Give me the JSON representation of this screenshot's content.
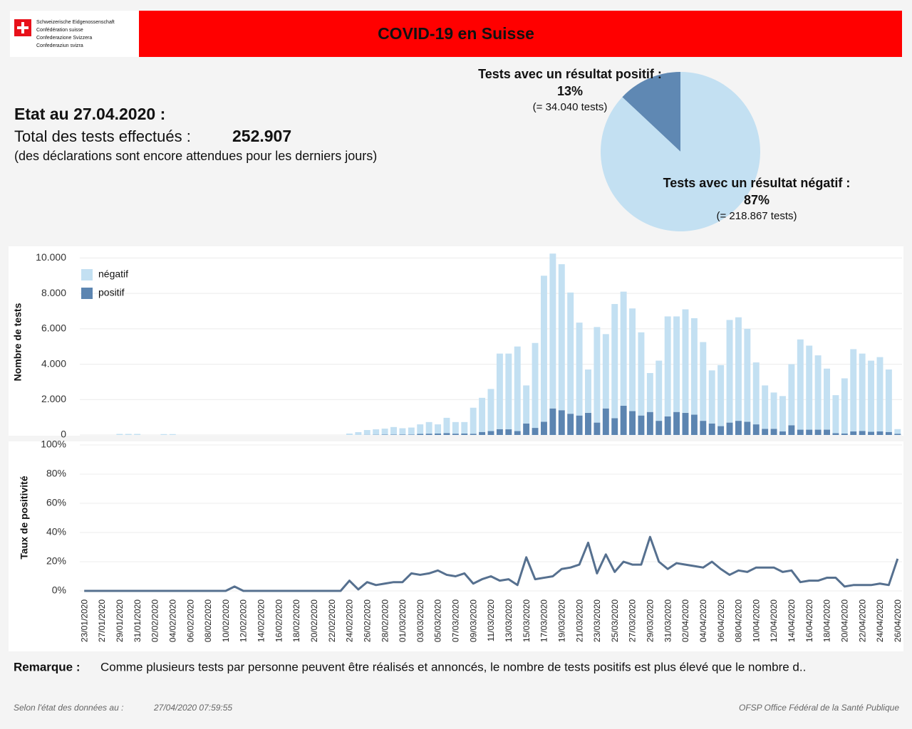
{
  "header": {
    "logo_lines": [
      "Schweizerische Eidgenossenschaft",
      "Confédération suisse",
      "Confederazione Svizzera",
      "Confederaziun svizra"
    ],
    "title": "COVID-19 en Suisse"
  },
  "summary": {
    "date_label": "Etat au 27.04.2020 :",
    "total_label": "Total des tests effectués :",
    "total_value": "252.907",
    "note": "(des déclarations sont encore attendues pour les derniers jours)"
  },
  "chart_data": [
    {
      "type": "pie",
      "labels": [
        "Tests avec un résultat positif :",
        "Tests avec un résultat négatif :"
      ],
      "values": [
        13,
        87
      ],
      "value_labels": [
        "13%",
        "87%"
      ],
      "details": [
        "(= 34.040 tests)",
        "(= 218.867 tests)"
      ],
      "colors": [
        "#5f88b3",
        "#c3e0f2"
      ]
    },
    {
      "type": "bar",
      "stacked": true,
      "y_label": "Nombre de tests",
      "ylim": [
        0,
        10500
      ],
      "yticks": [
        0,
        {
          "value": 2000,
          "label": "2.000"
        },
        {
          "value": 4000,
          "label": "4.000"
        },
        {
          "value": 6000,
          "label": "6.000"
        },
        {
          "value": 8000,
          "label": "8.000"
        },
        {
          "value": 10000,
          "label": "10.000"
        }
      ],
      "grid": true,
      "legend": "top-left",
      "series": [
        {
          "name": "négatif",
          "color": "#c3e0f2",
          "values": [
            0,
            0,
            0,
            0,
            60,
            60,
            60,
            0,
            0,
            50,
            50,
            0,
            0,
            0,
            0,
            0,
            0,
            0,
            0,
            0,
            0,
            0,
            0,
            0,
            0,
            0,
            0,
            0,
            0,
            0,
            80,
            160,
            270,
            305,
            340,
            425,
            350,
            395,
            540,
            655,
            520,
            860,
            655,
            650,
            1470,
            1930,
            2380,
            4270,
            4280,
            4780,
            2150,
            4800,
            8250,
            8750,
            8250,
            6850,
            5250,
            2450,
            5400,
            4200,
            6450,
            6450,
            5800,
            4700,
            2200,
            3400,
            5650,
            5400,
            5850,
            5450,
            4450,
            3000,
            3450,
            5800,
            5850,
            5250,
            3500,
            2450,
            2050,
            2000,
            3450,
            5100,
            4750,
            4200,
            3450,
            2150,
            3120,
            4650,
            4370,
            4020,
            4200,
            3530,
            260
          ]
        },
        {
          "name": "positif",
          "color": "#5c85b1",
          "values": [
            0,
            0,
            0,
            0,
            0,
            0,
            0,
            0,
            0,
            0,
            0,
            0,
            0,
            0,
            0,
            0,
            0,
            0,
            0,
            0,
            0,
            0,
            0,
            0,
            0,
            0,
            0,
            0,
            0,
            0,
            0,
            0,
            10,
            15,
            20,
            25,
            30,
            25,
            60,
            75,
            80,
            110,
            75,
            80,
            70,
            170,
            220,
            330,
            320,
            220,
            650,
            400,
            750,
            1500,
            1400,
            1200,
            1100,
            1250,
            700,
            1500,
            950,
            1650,
            1350,
            1100,
            1300,
            800,
            1050,
            1300,
            1250,
            1150,
            800,
            650,
            500,
            700,
            800,
            750,
            600,
            350,
            350,
            200,
            550,
            300,
            300,
            300,
            300,
            100,
            80,
            200,
            230,
            180,
            200,
            170,
            70
          ]
        }
      ]
    },
    {
      "type": "line",
      "y_label": "Taux de positivité",
      "ylim": [
        0,
        100
      ],
      "yticks": [
        {
          "value": 0,
          "label": "0%"
        },
        {
          "value": 20,
          "label": "20%"
        },
        {
          "value": 40,
          "label": "40%"
        },
        {
          "value": 60,
          "label": "60%"
        },
        {
          "value": 80,
          "label": "80%"
        },
        {
          "value": 100,
          "label": "100%"
        }
      ],
      "grid": true,
      "color": "#56708f",
      "categories": [
        "23/01/2020",
        null,
        "27/01/2020",
        null,
        "29/01/2020",
        null,
        "31/01/2020",
        null,
        "02/02/2020",
        null,
        "04/02/2020",
        null,
        "06/02/2020",
        null,
        "08/02/2020",
        null,
        "10/02/2020",
        null,
        "12/02/2020",
        null,
        "14/02/2020",
        null,
        "16/02/2020",
        null,
        "18/02/2020",
        null,
        "20/02/2020",
        null,
        "22/02/2020",
        null,
        "24/02/2020",
        null,
        "26/02/2020",
        null,
        "28/02/2020",
        null,
        "01/03/2020",
        null,
        "03/03/2020",
        null,
        "05/03/2020",
        null,
        "07/03/2020",
        null,
        "09/03/2020",
        null,
        "11/03/2020",
        null,
        "13/03/2020",
        null,
        "15/03/2020",
        null,
        "17/03/2020",
        null,
        "19/03/2020",
        null,
        "21/03/2020",
        null,
        "23/03/2020",
        null,
        "25/03/2020",
        null,
        "27/03/2020",
        null,
        "29/03/2020",
        null,
        "31/03/2020",
        null,
        "02/04/2020",
        null,
        "04/04/2020",
        null,
        "06/04/2020",
        null,
        "08/04/2020",
        null,
        "10/04/2020",
        null,
        "12/04/2020",
        null,
        "14/04/2020",
        null,
        "16/04/2020",
        null,
        "18/04/2020",
        null,
        "20/04/2020",
        null,
        "22/04/2020",
        null,
        "24/04/2020",
        null,
        "26/04/2020"
      ],
      "values": [
        0,
        0,
        0,
        0,
        0,
        0,
        0,
        0,
        0,
        0,
        0,
        0,
        0,
        0,
        0,
        0,
        0,
        3,
        0,
        0,
        0,
        0,
        0,
        0,
        0,
        0,
        0,
        0,
        0,
        0,
        7,
        1,
        6,
        4,
        5,
        6,
        6,
        12,
        11,
        12,
        14,
        11,
        10,
        12,
        5,
        8,
        10,
        7,
        8,
        4,
        23,
        8,
        9,
        10,
        15,
        16,
        18,
        33,
        12,
        25,
        13,
        20,
        18,
        18,
        37,
        20,
        15,
        19,
        18,
        17,
        16,
        20,
        15,
        11,
        14,
        13,
        16,
        16,
        16,
        13,
        14,
        6,
        7,
        7,
        9,
        9,
        3,
        4,
        4,
        4,
        5,
        4,
        22
      ]
    }
  ],
  "remark": {
    "label": "Remarque :",
    "text": "Comme plusieurs tests par personne peuvent être réalisés et annoncés, le nombre de tests positifs est plus élevé que le nombre d.."
  },
  "footer": {
    "source_label": "Selon l'état des données au :",
    "timestamp": "27/04/2020 07:59:55",
    "office": "OFSP Office Fédéral de la Santé Publique"
  }
}
